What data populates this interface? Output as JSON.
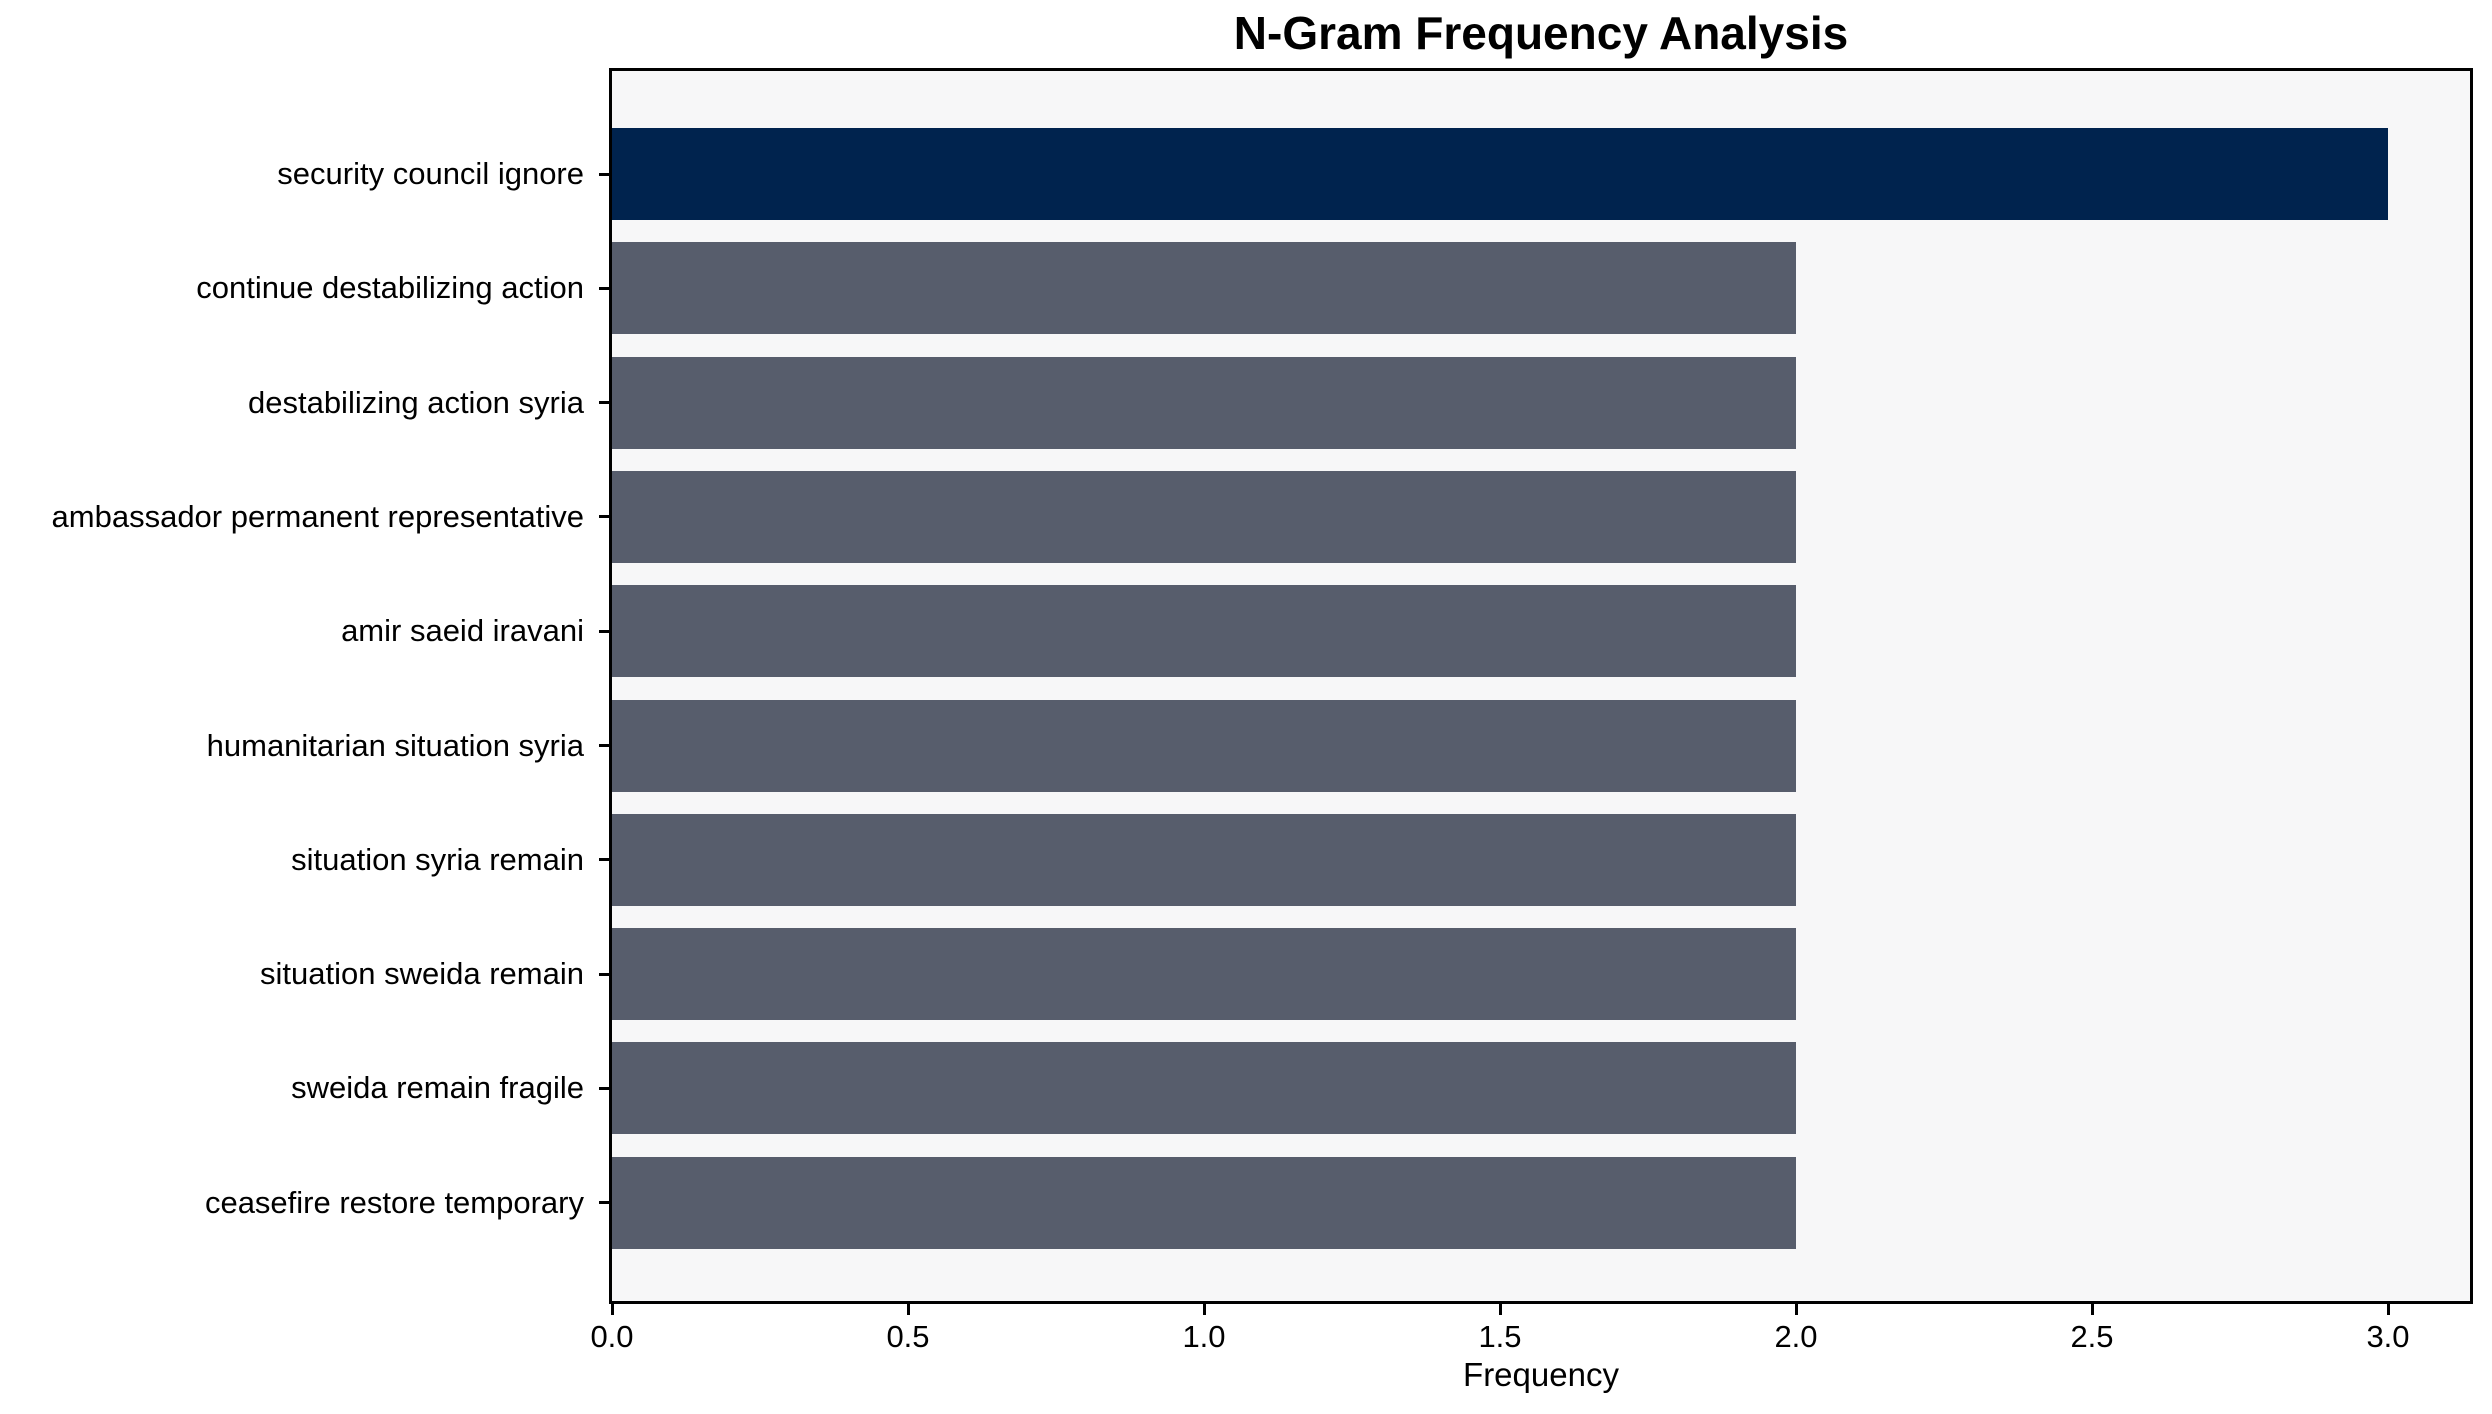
{
  "chart_data": {
    "type": "bar",
    "orientation": "horizontal",
    "title": "N-Gram Frequency Analysis",
    "xlabel": "Frequency",
    "ylabel": "",
    "categories": [
      "security council ignore",
      "continue destabilizing action",
      "destabilizing action syria",
      "ambassador permanent representative",
      "amir saeid iravani",
      "humanitarian situation syria",
      "situation syria remain",
      "situation sweida remain",
      "sweida remain fragile",
      "ceasefire restore temporary"
    ],
    "values": [
      3,
      2,
      2,
      2,
      2,
      2,
      2,
      2,
      2,
      2
    ],
    "xtick_labels": [
      "0.0",
      "0.5",
      "1.0",
      "1.5",
      "2.0",
      "2.5",
      "3.0"
    ],
    "xlim": [
      0,
      3.14
    ],
    "grid": false,
    "legend": false,
    "colors": {
      "highlight_bar": "#00234e",
      "default_bar": "#575d6c",
      "plot_background": "#f7f7f8",
      "figure_background": "#ffffff",
      "spine": "#000000",
      "text": "#000000"
    },
    "highlight_index": 0
  }
}
